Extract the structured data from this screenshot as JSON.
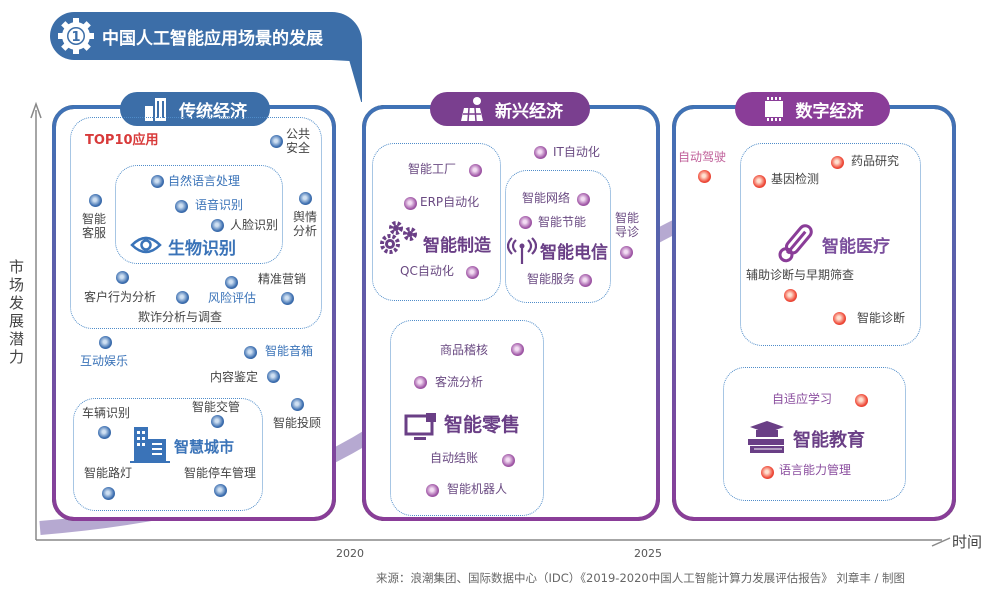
{
  "header": {
    "number": "1",
    "title": "中国人工智能应用场景的发展"
  },
  "axes": {
    "y_label": "市场发展潜力",
    "x_label": "时间",
    "x_ticks": [
      "2020",
      "2025"
    ]
  },
  "source": "来源：浪潮集团、国际数据中心（IDC）《2019-2020中国人工智能计算力发展评估报告》 刘章丰 / 制图",
  "colors": {
    "traditional": "#3c6ea8",
    "emerging": "#7a3f8f",
    "digital": "#8a3d98",
    "dot_blue": "#3d6fb0",
    "dot_purple": "#a25aa8",
    "dot_red": "#ef4b3a",
    "trend_arrow": "#a493c6"
  },
  "panels": [
    {
      "title": "传统经济",
      "icon": "buildings-icon",
      "top10": "TOP10应用",
      "groups": [
        {
          "title": "生物识别",
          "icon": "eye-icon"
        },
        {
          "title": "智慧城市",
          "icon": "city-building-icon"
        }
      ],
      "items": [
        "公共安全",
        "自然语言处理",
        "语音识别",
        "人脸识别",
        "智能客服",
        "舆情分析",
        "客户行为分析",
        "欺诈分析与调查",
        "风险评估",
        "精准营销",
        "互动娱乐",
        "智能音箱",
        "内容鉴定",
        "智能投顾",
        "车辆识别",
        "智能交管",
        "智能路灯",
        "智能停车管理"
      ]
    },
    {
      "title": "新兴经济",
      "icon": "solar-panel-icon",
      "groups": [
        {
          "title": "智能制造",
          "icon": "gears-icon"
        },
        {
          "title": "智能电信",
          "icon": "antenna-icon"
        },
        {
          "title": "智能零售",
          "icon": "monitor-icon"
        }
      ],
      "items": [
        "智能工厂",
        "ERP自动化",
        "QC自动化",
        "IT自动化",
        "智能网络",
        "智能节能",
        "智能服务",
        "智能导诊",
        "商品稽核",
        "客流分析",
        "自动结账",
        "智能机器人"
      ]
    },
    {
      "title": "数字经济",
      "icon": "chip-icon",
      "groups": [
        {
          "title": "智能医疗",
          "icon": "thermometer-icon"
        },
        {
          "title": "智能教育",
          "icon": "books-graduation-cap-icon"
        }
      ],
      "items": [
        "自动驾驶",
        "药品研究",
        "基因检测",
        "辅助诊断与早期筛查",
        "智能诊断",
        "自适应学习",
        "语言能力管理"
      ]
    }
  ]
}
